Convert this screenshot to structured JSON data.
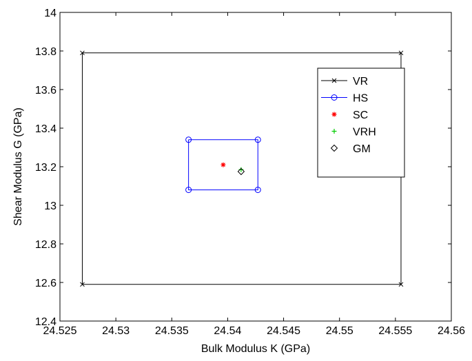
{
  "chart_data": {
    "type": "scatter",
    "title": "",
    "xlabel": "Bulk Modulus K (GPa)",
    "ylabel": "Shear Modulus G (GPa)",
    "xlim": [
      24.525,
      24.56
    ],
    "ylim": [
      12.4,
      14.0
    ],
    "xticks": [
      24.525,
      24.53,
      24.535,
      24.54,
      24.545,
      24.55,
      24.555,
      24.56
    ],
    "xtick_labels": [
      "24.525",
      "24.53",
      "24.535",
      "24.54",
      "24.545",
      "24.55",
      "24.555",
      "24.56"
    ],
    "yticks": [
      12.4,
      12.6,
      12.8,
      13.0,
      13.2,
      13.4,
      13.6,
      13.8,
      14.0
    ],
    "ytick_labels": [
      "12.4",
      "12.6",
      "12.8",
      "13",
      "13.2",
      "13.4",
      "13.6",
      "13.8",
      "14"
    ],
    "grid": false,
    "legend_position": "top-right",
    "series": [
      {
        "name": "VR",
        "color": "#000000",
        "marker": "x",
        "line": true,
        "x": [
          24.527,
          24.5555,
          24.5555,
          24.527,
          24.527
        ],
        "y": [
          13.79,
          13.79,
          12.59,
          12.59,
          13.79
        ]
      },
      {
        "name": "HS",
        "color": "#0000ff",
        "marker": "circle",
        "line": true,
        "x": [
          24.5365,
          24.5427,
          24.5427,
          24.5365,
          24.5365
        ],
        "y": [
          13.34,
          13.34,
          13.08,
          13.08,
          13.34
        ]
      },
      {
        "name": "SC",
        "color": "#ff0000",
        "marker": "asterisk",
        "line": false,
        "x": [
          24.5396
        ],
        "y": [
          13.21
        ]
      },
      {
        "name": "VRH",
        "color": "#00cc00",
        "marker": "plus",
        "line": false,
        "x": [
          24.5412
        ],
        "y": [
          13.185
        ]
      },
      {
        "name": "GM",
        "color": "#000000",
        "marker": "diamond",
        "line": false,
        "x": [
          24.5412
        ],
        "y": [
          13.175
        ]
      }
    ]
  }
}
